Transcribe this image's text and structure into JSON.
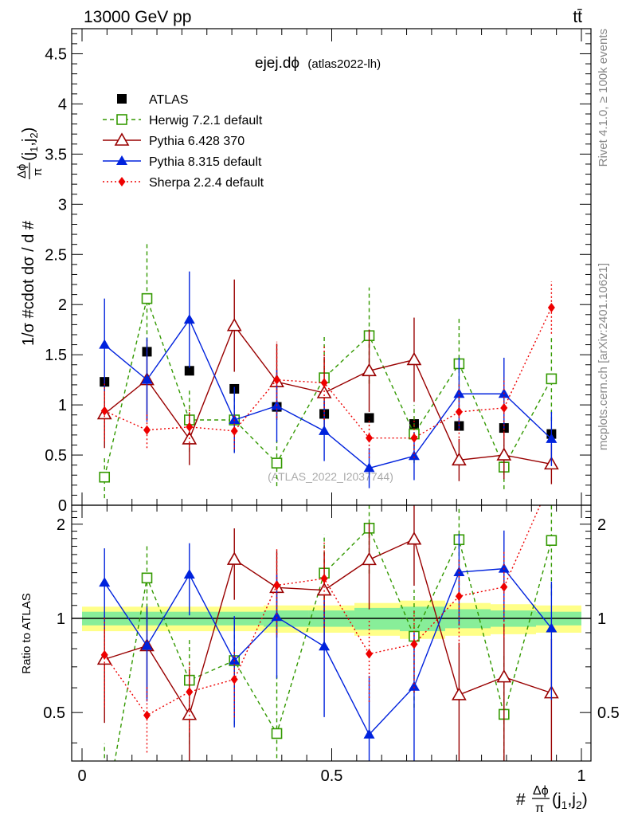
{
  "header": {
    "energy_label": "13000 GeV pp",
    "process_label": "tt̄"
  },
  "side_text": {
    "rivet": "Rivet 4.1.0, ≥ 100k events",
    "mcplots": "mcplots.cern.ch [arXiv:2401.10621]"
  },
  "chart_data": {
    "type": "scatter",
    "title": "ejej.dϕ",
    "subtitle": "(atlas2022-lh)",
    "watermark": "(ATLAS_2022_I2037744)",
    "ylabel": "1/σ #cdot dσ / d #Δϕ/π(j1,j2)",
    "ylabel_parts": {
      "a": "1/σ #cdot dσ / d #",
      "num": "Δϕ",
      "den": "π",
      "b": "(j",
      "sub1": "1",
      "c": ",j",
      "sub2": "2",
      "d": ")"
    },
    "xlabel_parts": {
      "a": "#",
      "num": "Δϕ",
      "den": "π",
      "b": "(j",
      "sub1": "1",
      "c": ",j",
      "sub2": "2",
      "d": ")"
    },
    "ratio_ylabel": "Ratio to ATLAS",
    "xlim": [
      0,
      1
    ],
    "ylim": [
      0,
      4.75
    ],
    "ratio_ylim": [
      0.35,
      2.3
    ],
    "x_ticks": [
      {
        "v": 0,
        "label": "0"
      },
      {
        "v": 0.5,
        "label": "0.5"
      },
      {
        "v": 1,
        "label": "1"
      }
    ],
    "y_ticks": [
      {
        "v": 0,
        "label": "0"
      },
      {
        "v": 0.5,
        "label": "0.5"
      },
      {
        "v": 1,
        "label": "1"
      },
      {
        "v": 1.5,
        "label": "1.5"
      },
      {
        "v": 2,
        "label": "2"
      },
      {
        "v": 2.5,
        "label": "2.5"
      },
      {
        "v": 3,
        "label": "3"
      },
      {
        "v": 3.5,
        "label": "3.5"
      },
      {
        "v": 4,
        "label": "4"
      },
      {
        "v": 4.5,
        "label": "4.5"
      }
    ],
    "ratio_y_ticks": [
      {
        "v": 0.5,
        "label": "0.5"
      },
      {
        "v": 1,
        "label": "1"
      },
      {
        "v": 2,
        "label": "2"
      }
    ],
    "bin_edges": [
      0,
      0.0909,
      0.1818,
      0.2727,
      0.3636,
      0.4545,
      0.5455,
      0.6364,
      0.7273,
      0.8182,
      0.9091,
      1.0
    ],
    "x": [
      0.045,
      0.13,
      0.215,
      0.305,
      0.39,
      0.485,
      0.575,
      0.665,
      0.755,
      0.845,
      0.94
    ],
    "band_inner": [
      0.05,
      0.05,
      0.05,
      0.05,
      0.06,
      0.06,
      0.08,
      0.09,
      0.07,
      0.06,
      0.05
    ],
    "band_outer": [
      0.09,
      0.09,
      0.09,
      0.09,
      0.1,
      0.1,
      0.12,
      0.14,
      0.12,
      0.11,
      0.1
    ],
    "series": [
      {
        "name": "ATLAS",
        "color": "#000000",
        "marker": "square-filled",
        "dash": "",
        "values": [
          1.23,
          1.53,
          1.34,
          1.16,
          0.98,
          0.91,
          0.87,
          0.81,
          0.79,
          0.77,
          0.71
        ],
        "errors": [
          0.02,
          0.02,
          0.02,
          0.02,
          0.02,
          0.02,
          0.02,
          0.02,
          0.02,
          0.02,
          0.02
        ]
      },
      {
        "name": "Herwig 7.2.1 default",
        "color": "#339900",
        "marker": "square-open",
        "dash": "5,4",
        "values": [
          0.28,
          2.06,
          0.85,
          0.85,
          0.42,
          1.27,
          1.69,
          0.71,
          1.41,
          0.38,
          1.26
        ],
        "errors": [
          0.21,
          0.57,
          0.32,
          0.32,
          0.23,
          0.42,
          0.48,
          0.29,
          0.45,
          0.22,
          0.42
        ]
      },
      {
        "name": "Pythia 6.428 370",
        "color": "#990000",
        "marker": "triangle-open",
        "dash": "",
        "values": [
          0.91,
          1.25,
          0.66,
          1.79,
          1.23,
          1.12,
          1.34,
          1.45,
          0.45,
          0.5,
          0.41
        ],
        "errors": [
          0.34,
          0.4,
          0.26,
          0.46,
          0.38,
          0.36,
          0.41,
          0.42,
          0.21,
          0.24,
          0.2
        ]
      },
      {
        "name": "Pythia 8.315 default",
        "color": "#0022dd",
        "marker": "triangle-filled",
        "dash": "",
        "values": [
          1.6,
          1.25,
          1.85,
          0.85,
          0.99,
          0.74,
          0.37,
          0.49,
          1.11,
          1.11,
          0.66
        ],
        "errors": [
          0.46,
          0.42,
          0.48,
          0.33,
          0.36,
          0.3,
          0.2,
          0.24,
          0.36,
          0.36,
          0.27
        ]
      },
      {
        "name": "Sherpa 2.2.4 default",
        "color": "#ee0000",
        "marker": "diamond-filled",
        "dash": "2,3",
        "values": [
          0.94,
          0.75,
          0.78,
          0.74,
          1.25,
          1.22,
          0.67,
          0.67,
          0.93,
          0.97,
          1.97
        ],
        "errors": [
          0.3,
          0.18,
          0.2,
          0.18,
          0.38,
          0.37,
          0.2,
          0.2,
          0.3,
          0.3,
          0.26
        ]
      }
    ]
  }
}
